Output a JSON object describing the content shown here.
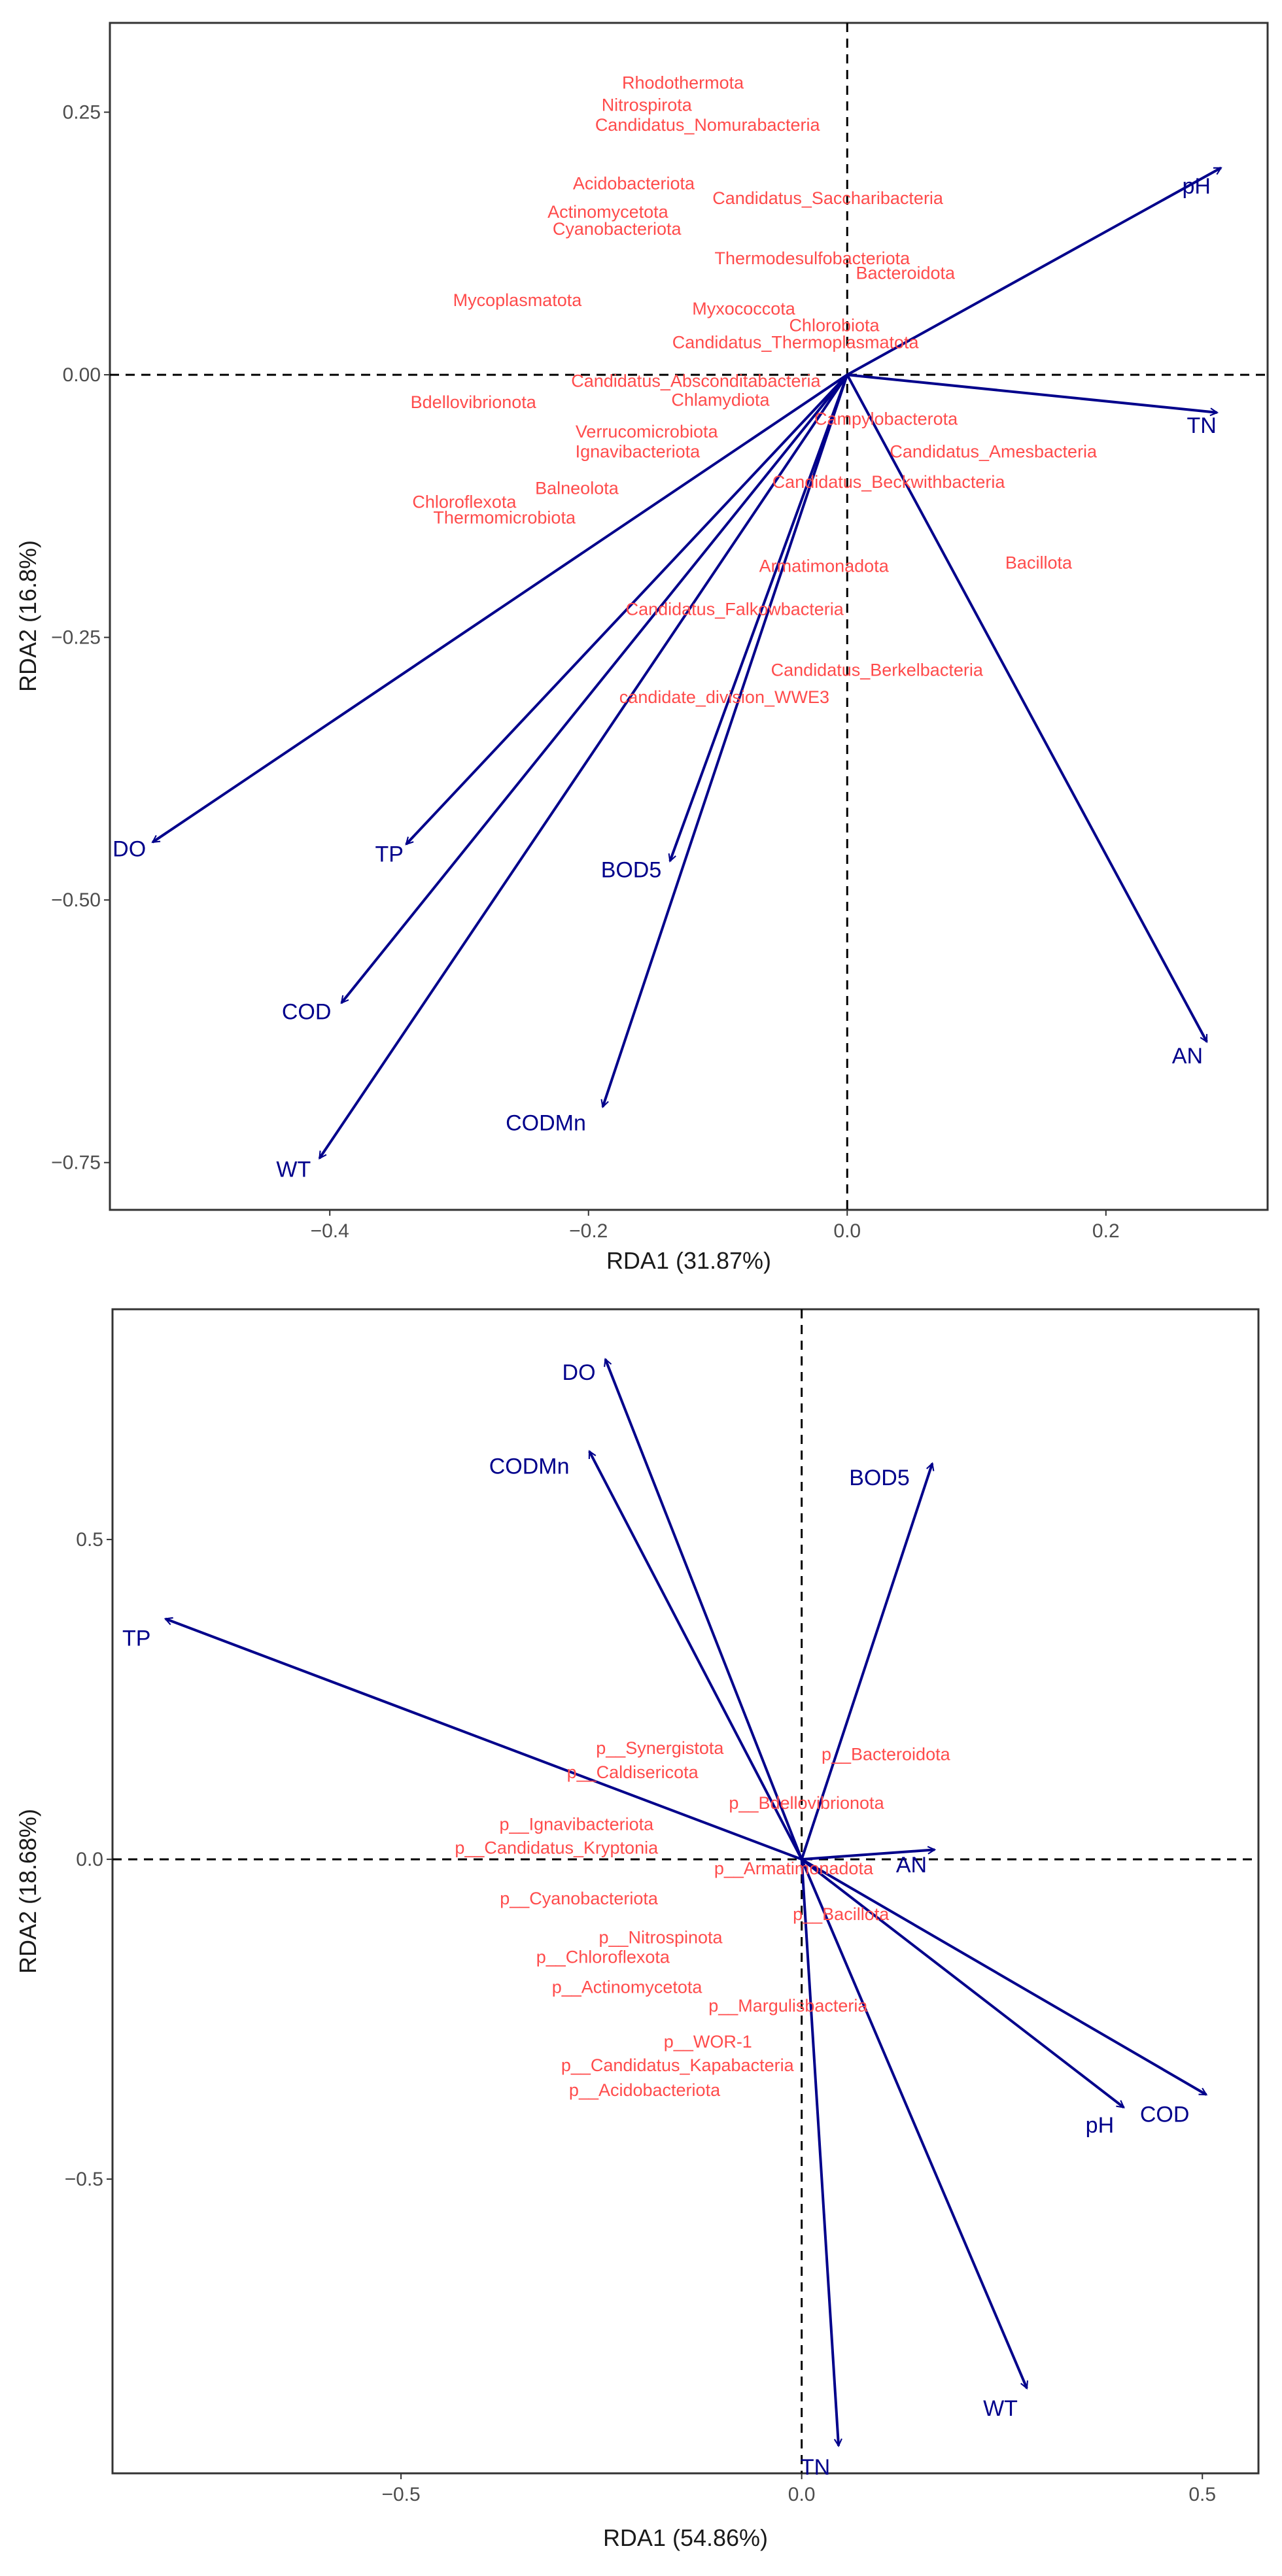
{
  "chart_data": [
    {
      "type": "scatter",
      "subtype": "rda-biplot",
      "xlabel": "RDA1 (31.87%)",
      "ylabel": "RDA2 (16.8%)",
      "xlim": [
        -0.57,
        0.325
      ],
      "ylim": [
        -0.795,
        0.335
      ],
      "xticks": [
        -0.4,
        -0.2,
        0.0,
        0.2
      ],
      "xtick_labels": [
        "−0.4",
        "−0.2",
        "0.0",
        "0.2"
      ],
      "yticks": [
        0.25,
        0.0,
        -0.25,
        -0.5,
        -0.75
      ],
      "ytick_labels": [
        "0.25",
        "0.00",
        "−0.25",
        "−0.50",
        "−0.75"
      ],
      "reference_lines": {
        "x": 0,
        "y": 0,
        "style": "dashed"
      },
      "arrows": [
        {
          "label": "pH",
          "x": 0.289,
          "y": 0.197,
          "label_x": 0.27,
          "label_y": 0.18
        },
        {
          "label": "TN",
          "x": 0.286,
          "y": -0.036,
          "label_x": 0.274,
          "label_y": -0.048
        },
        {
          "label": "AN",
          "x": 0.278,
          "y": -0.635,
          "label_x": 0.263,
          "label_y": -0.648
        },
        {
          "label": "DO",
          "x": -0.537,
          "y": -0.445,
          "label_x": -0.555,
          "label_y": -0.451
        },
        {
          "label": "TP",
          "x": -0.341,
          "y": -0.447,
          "label_x": -0.354,
          "label_y": -0.456
        },
        {
          "label": "BOD5",
          "x": -0.137,
          "y": -0.463,
          "label_x": -0.167,
          "label_y": -0.471
        },
        {
          "label": "COD",
          "x": -0.391,
          "y": -0.598,
          "label_x": -0.418,
          "label_y": -0.606
        },
        {
          "label": "CODMn",
          "x": -0.189,
          "y": -0.697,
          "label_x": -0.233,
          "label_y": -0.712
        },
        {
          "label": "WT",
          "x": -0.408,
          "y": -0.746,
          "label_x": -0.428,
          "label_y": -0.756
        }
      ],
      "taxa": [
        {
          "label": "Rhodothermota",
          "x": -0.127,
          "y": 0.278
        },
        {
          "label": "Nitrospirota",
          "x": -0.155,
          "y": 0.257
        },
        {
          "label": "Candidatus_Nomurabacteria",
          "x": -0.108,
          "y": 0.238
        },
        {
          "label": "Acidobacteriota",
          "x": -0.165,
          "y": 0.182
        },
        {
          "label": "Candidatus_Saccharibacteria",
          "x": -0.015,
          "y": 0.168
        },
        {
          "label": "Actinomycetota",
          "x": -0.185,
          "y": 0.155
        },
        {
          "label": "Cyanobacteriota",
          "x": -0.178,
          "y": 0.139
        },
        {
          "label": "Thermodesulfobacteriota",
          "x": -0.027,
          "y": 0.111
        },
        {
          "label": "Bacteroidota",
          "x": 0.045,
          "y": 0.097
        },
        {
          "label": "Mycoplasmatota",
          "x": -0.255,
          "y": 0.071
        },
        {
          "label": "Myxococcota",
          "x": -0.08,
          "y": 0.063
        },
        {
          "label": "Chlorobiota",
          "x": -0.01,
          "y": 0.047
        },
        {
          "label": "Candidatus_Thermoplasmatota",
          "x": -0.04,
          "y": 0.031
        },
        {
          "label": "Candidatus_Absconditabacteria",
          "x": -0.117,
          "y": -0.006
        },
        {
          "label": "Chlamydiota",
          "x": -0.098,
          "y": -0.024
        },
        {
          "label": "Bdellovibrionota",
          "x": -0.289,
          "y": -0.026
        },
        {
          "label": "Campylobacterota",
          "x": 0.03,
          "y": -0.042
        },
        {
          "label": "Verrucomicrobiota",
          "x": -0.155,
          "y": -0.054
        },
        {
          "label": "Ignavibacteriota",
          "x": -0.162,
          "y": -0.073
        },
        {
          "label": "Candidatus_Amesbacteria",
          "x": 0.113,
          "y": -0.073
        },
        {
          "label": "Candidatus_Beckwithbacteria",
          "x": 0.032,
          "y": -0.102
        },
        {
          "label": "Balneolota",
          "x": -0.209,
          "y": -0.108
        },
        {
          "label": "Chloroflexota",
          "x": -0.296,
          "y": -0.121
        },
        {
          "label": "Thermomicrobiota",
          "x": -0.265,
          "y": -0.136
        },
        {
          "label": "Bacillota",
          "x": 0.148,
          "y": -0.179
        },
        {
          "label": "Armatimonadota",
          "x": -0.018,
          "y": -0.182
        },
        {
          "label": "Candidatus_Falkowbacteria",
          "x": -0.087,
          "y": -0.223
        },
        {
          "label": "Candidatus_Berkelbacteria",
          "x": 0.023,
          "y": -0.281
        },
        {
          "label": "candidate_division_WWE3",
          "x": -0.095,
          "y": -0.307
        }
      ]
    },
    {
      "type": "scatter",
      "subtype": "rda-biplot",
      "xlabel": "RDA1 (54.86%)",
      "ylabel": "RDA2 (18.68%)",
      "xlim": [
        -0.86,
        0.57
      ],
      "ylim": [
        -0.96,
        0.86
      ],
      "xticks": [
        -0.5,
        0.0,
        0.5
      ],
      "xtick_labels": [
        "−0.5",
        "0.0",
        "0.5"
      ],
      "yticks": [
        0.5,
        0.0,
        -0.5
      ],
      "ytick_labels": [
        "0.5",
        "0.0",
        "−0.5"
      ],
      "reference_lines": {
        "x": 0,
        "y": 0,
        "style": "dashed"
      },
      "arrows": [
        {
          "label": "DO",
          "x": -0.245,
          "y": 0.782,
          "label_x": -0.278,
          "label_y": 0.762
        },
        {
          "label": "CODMn",
          "x": -0.265,
          "y": 0.638,
          "label_x": -0.34,
          "label_y": 0.615
        },
        {
          "label": "BOD5",
          "x": 0.163,
          "y": 0.619,
          "label_x": 0.097,
          "label_y": 0.597
        },
        {
          "label": "TP",
          "x": -0.794,
          "y": 0.376,
          "label_x": -0.83,
          "label_y": 0.346
        },
        {
          "label": "AN",
          "x": 0.166,
          "y": 0.015,
          "label_x": 0.137,
          "label_y": -0.008
        },
        {
          "label": "pH",
          "x": 0.402,
          "y": -0.388,
          "label_x": 0.372,
          "label_y": -0.415
        },
        {
          "label": "COD",
          "x": 0.505,
          "y": -0.368,
          "label_x": 0.453,
          "label_y": -0.398
        },
        {
          "label": "WT",
          "x": 0.281,
          "y": -0.827,
          "label_x": 0.248,
          "label_y": -0.858
        },
        {
          "label": "TN",
          "x": 0.046,
          "y": -0.917,
          "label_x": 0.017,
          "label_y": -0.95
        }
      ],
      "taxa": [
        {
          "label": "p__Synergistota",
          "x": -0.177,
          "y": 0.174
        },
        {
          "label": "p__Bacteroidota",
          "x": 0.105,
          "y": 0.164
        },
        {
          "label": "p__Caldisericota",
          "x": -0.211,
          "y": 0.136
        },
        {
          "label": "p__Bdellovibrionota",
          "x": 0.006,
          "y": 0.088
        },
        {
          "label": "p__Ignavibacteriota",
          "x": -0.281,
          "y": 0.055
        },
        {
          "label": "p__Candidatus_Kryptonia",
          "x": -0.306,
          "y": 0.018
        },
        {
          "label": "p__Armatimonadota",
          "x": -0.01,
          "y": -0.014
        },
        {
          "label": "p__Cyanobacteriota",
          "x": -0.278,
          "y": -0.061
        },
        {
          "label": "p__Bacillota",
          "x": 0.049,
          "y": -0.086
        },
        {
          "label": "p__Nitrospinota",
          "x": -0.176,
          "y": -0.122
        },
        {
          "label": "p__Chloroflexota",
          "x": -0.248,
          "y": -0.153
        },
        {
          "label": "p__Actinomycetota",
          "x": -0.218,
          "y": -0.2
        },
        {
          "label": "p__Margulisbacteria",
          "x": -0.017,
          "y": -0.229
        },
        {
          "label": "p__WOR-1",
          "x": -0.117,
          "y": -0.285
        },
        {
          "label": "p__Candidatus_Kapabacteria",
          "x": -0.155,
          "y": -0.322
        },
        {
          "label": "p__Acidobacteriota",
          "x": -0.196,
          "y": -0.361
        }
      ]
    }
  ]
}
